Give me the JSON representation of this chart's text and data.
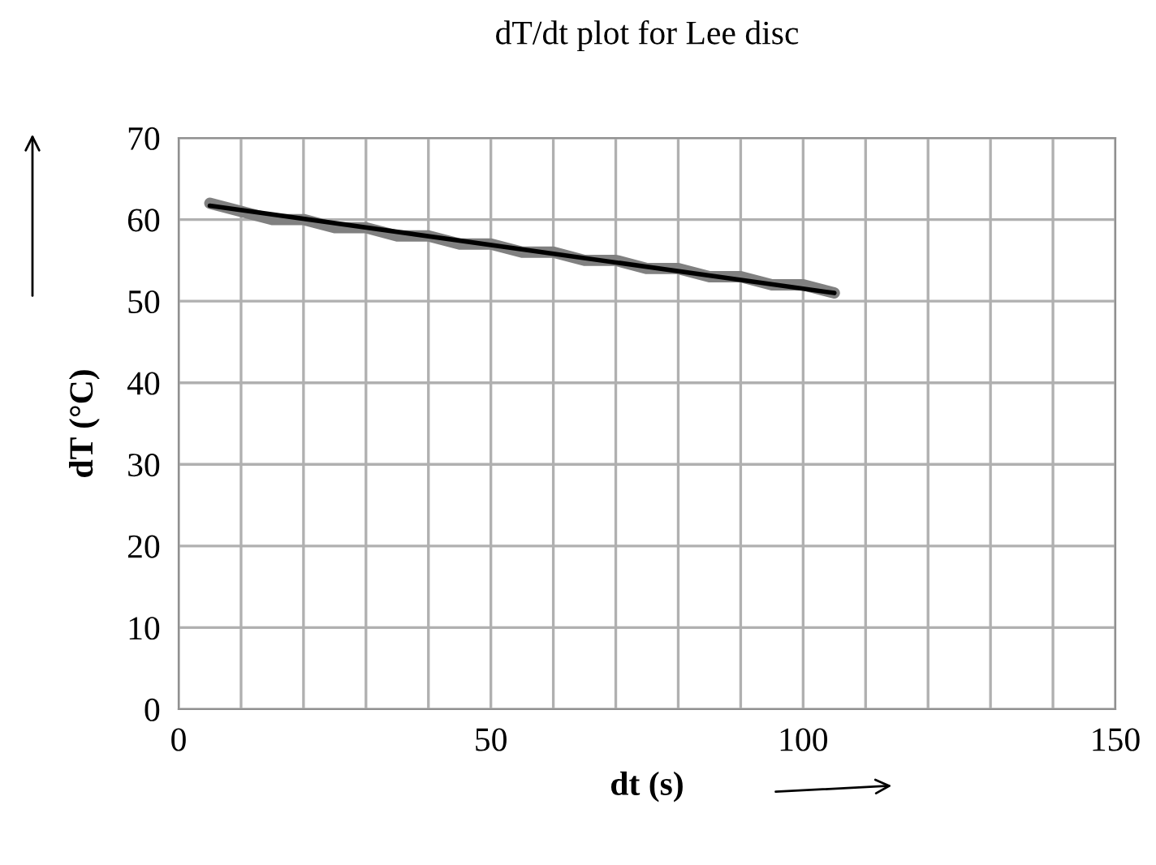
{
  "chart_data": {
    "type": "line",
    "title": "dT/dt plot for Lee disc",
    "xlabel": "dt (s)",
    "ylabel": "dT (°C)",
    "x": [
      5,
      10,
      15,
      20,
      25,
      30,
      35,
      40,
      45,
      50,
      55,
      60,
      65,
      70,
      75,
      80,
      85,
      90,
      95,
      100,
      105
    ],
    "series": [
      {
        "color": "#808080",
        "values": [
          62,
          61,
          60,
          60,
          59,
          59,
          58,
          58,
          57,
          57,
          56,
          56,
          55,
          55,
          54,
          54,
          53,
          53,
          52,
          52,
          51
        ]
      },
      {
        "color": "#000000",
        "x": [
          5,
          105
        ],
        "values": [
          61.7,
          51
        ]
      }
    ],
    "xlim": [
      0,
      150
    ],
    "ylim": [
      0,
      70
    ],
    "xticks": [
      0,
      {
        "value": 10,
        "label": null
      },
      {
        "value": 20,
        "label": null
      },
      {
        "value": 30,
        "label": null
      },
      {
        "value": 40,
        "label": null
      },
      50,
      {
        "value": 60,
        "label": null
      },
      {
        "value": 70,
        "label": null
      },
      {
        "value": 80,
        "label": null
      },
      {
        "value": 90,
        "label": null
      },
      100,
      {
        "value": 110,
        "label": null
      },
      {
        "value": 120,
        "label": null
      },
      {
        "value": 130,
        "label": null
      },
      {
        "value": 140,
        "label": null
      },
      150
    ],
    "yticks": [
      0,
      10,
      20,
      30,
      40,
      50,
      60,
      70
    ],
    "grid": true,
    "marker": "none",
    "line_style": "solid"
  }
}
